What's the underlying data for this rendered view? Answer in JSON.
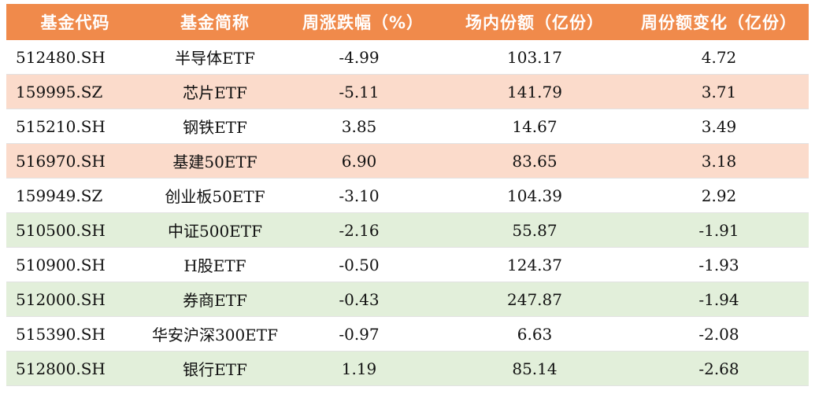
{
  "headers": [
    "基金代码",
    "基金简称",
    "周涨跌幅（%）",
    "场内份额（亿份）",
    "周份额变化（亿份）"
  ],
  "colors": {
    "header_bg": "#f08a4b",
    "row_orange": "#fbdbcb",
    "row_green": "#e2efda",
    "row_white": "#ffffff"
  },
  "rows": [
    {
      "code": "512480.SH",
      "name": "半导体ETF",
      "change": "-4.99",
      "shares": "103.17",
      "delta": "4.72",
      "tone": "plain"
    },
    {
      "code": "159995.SZ",
      "name": "芯片ETF",
      "change": "-5.11",
      "shares": "141.79",
      "delta": "3.71",
      "tone": "orange"
    },
    {
      "code": "515210.SH",
      "name": "钢铁ETF",
      "change": "3.85",
      "shares": "14.67",
      "delta": "3.49",
      "tone": "plain"
    },
    {
      "code": "516970.SH",
      "name": "基建50ETF",
      "change": "6.90",
      "shares": "83.65",
      "delta": "3.18",
      "tone": "orange"
    },
    {
      "code": "159949.SZ",
      "name": "创业板50ETF",
      "change": "-3.10",
      "shares": "104.39",
      "delta": "2.92",
      "tone": "plain"
    },
    {
      "code": "510500.SH",
      "name": "中证500ETF",
      "change": "-2.16",
      "shares": "55.87",
      "delta": "-1.91",
      "tone": "green"
    },
    {
      "code": "510900.SH",
      "name": "H股ETF",
      "change": "-0.50",
      "shares": "124.37",
      "delta": "-1.93",
      "tone": "plain"
    },
    {
      "code": "512000.SH",
      "name": "券商ETF",
      "change": "-0.43",
      "shares": "247.87",
      "delta": "-1.94",
      "tone": "green"
    },
    {
      "code": "515390.SH",
      "name": "华安沪深300ETF",
      "change": "-0.97",
      "shares": "6.63",
      "delta": "-2.08",
      "tone": "plain"
    },
    {
      "code": "512800.SH",
      "name": "银行ETF",
      "change": "1.19",
      "shares": "85.14",
      "delta": "-2.68",
      "tone": "green"
    }
  ]
}
